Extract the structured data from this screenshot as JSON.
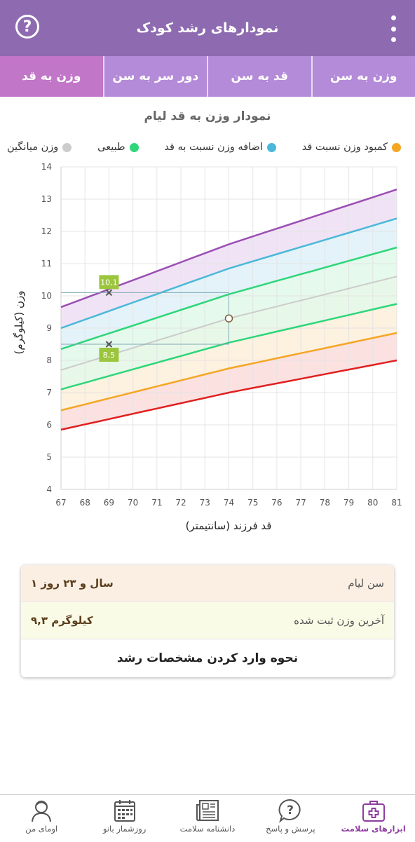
{
  "header": {
    "title": "نمودارهای رشد کودک",
    "help_icon": "help-circle-icon",
    "menu_icon": "more-vert-icon"
  },
  "tabs": [
    {
      "label": "وزن به سن"
    },
    {
      "label": "قد به سن"
    },
    {
      "label": "دور سر به سن"
    },
    {
      "label": "وزن به قد",
      "active": true
    }
  ],
  "chart": {
    "title": "نمودار وزن به قد لیام",
    "legend": [
      {
        "label": "کمبود وزن نسبت قد",
        "color": "#f5a623"
      },
      {
        "label": "اضافه وزن نسبت به قد",
        "color": "#4ab8d8"
      },
      {
        "label": "طبیعی",
        "color": "#2ed67a"
      },
      {
        "label": "وزن میانگین",
        "color": "#cccccc"
      }
    ],
    "marker_labels": {
      "upper": "10,1",
      "lower": "8,5"
    }
  },
  "chart_data": {
    "type": "line",
    "xlabel": "قد فرزند (سانتیمتر)",
    "ylabel": "وزن (کیلوگرم)",
    "xlim": [
      67,
      81
    ],
    "ylim": [
      4,
      14
    ],
    "x_ticks": [
      67,
      68,
      69,
      70,
      71,
      72,
      73,
      74,
      75,
      76,
      77,
      78,
      79,
      80,
      81
    ],
    "y_ticks": [
      4,
      5,
      6,
      7,
      8,
      9,
      10,
      11,
      12,
      13,
      14
    ],
    "grid": true,
    "series": [
      {
        "color": "#9b4fb3",
        "x": [
          67,
          74,
          81
        ],
        "y": [
          9.65,
          11.6,
          13.3
        ]
      },
      {
        "color": "#4ab8d8",
        "x": [
          67,
          74,
          81
        ],
        "y": [
          9.0,
          10.85,
          12.4
        ]
      },
      {
        "color": "#2ed67a",
        "x": [
          67,
          74,
          81
        ],
        "y": [
          8.35,
          10.05,
          11.5
        ]
      },
      {
        "color": "#cccccc",
        "x": [
          67,
          74,
          81
        ],
        "y": [
          7.7,
          9.3,
          10.6
        ]
      },
      {
        "color": "#2ed67a",
        "x": [
          67,
          74,
          81
        ],
        "y": [
          7.1,
          8.55,
          9.75
        ]
      },
      {
        "color": "#f5a623",
        "x": [
          67,
          74,
          81
        ],
        "y": [
          6.45,
          7.75,
          8.85
        ]
      },
      {
        "color": "#e02020",
        "x": [
          67,
          74,
          81
        ],
        "y": [
          5.85,
          7.0,
          8.0
        ]
      }
    ],
    "points": [
      {
        "x": 74,
        "y": 9.3,
        "kind": "child-measurement"
      },
      {
        "x": 69,
        "y": 10.1,
        "kind": "upper-marker"
      },
      {
        "x": 69,
        "y": 8.5,
        "kind": "lower-marker"
      }
    ]
  },
  "info": {
    "age_label": "سن لیام",
    "age_value": "۱ سال و ۲۳ روز",
    "weight_label": "آخرین وزن ثبت شده",
    "weight_value": "۹,۳ کیلوگرم",
    "howto_label": "نحوه وارد کردن مشخصات رشد"
  },
  "bottom_nav": [
    {
      "label": "اومای من",
      "icon": "user-icon"
    },
    {
      "label": "روزشمار بانو",
      "icon": "calendar-icon"
    },
    {
      "label": "دانشنامه سلامت",
      "icon": "newspaper-icon"
    },
    {
      "label": "پرسش و پاسخ",
      "icon": "question-bubble-icon"
    },
    {
      "label": "ابزارهای سلامت",
      "icon": "medical-kit-icon",
      "active": true
    }
  ]
}
